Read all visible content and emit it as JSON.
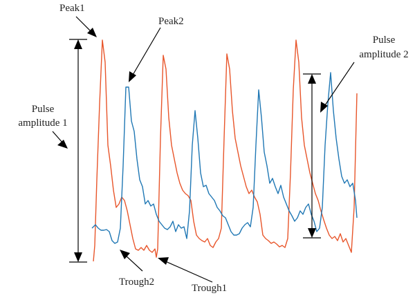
{
  "labels": {
    "peak1": "Peak1",
    "peak2": "Peak2",
    "pulse_amp_1_line1": "Pulse",
    "pulse_amp_1_line2": "amplitude 1",
    "pulse_amp_2_line1": "Pulse",
    "pulse_amp_2_line2": "amplitude 2",
    "trough1": "Trough1",
    "trough2": "Trough2"
  },
  "colors": {
    "red_wave": "#e8552a",
    "blue_wave": "#1f77b4",
    "arrows": "#000000",
    "text": "#222222"
  }
}
